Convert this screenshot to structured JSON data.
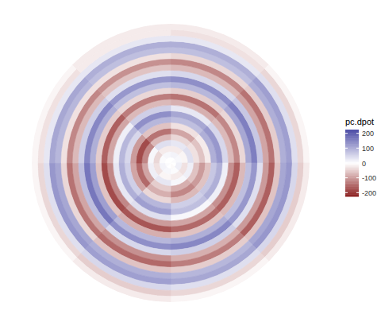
{
  "chart_data": {
    "type": "heatmap",
    "x": [
      22.5,
      67.5,
      112.5,
      157.5,
      202.5,
      247.5,
      292.5,
      337.5
    ],
    "xlim": [
      0,
      360
    ],
    "y": [
      0.5,
      1.5,
      2.5,
      3.5,
      4.5,
      5.5,
      6.5,
      7.5,
      8.5,
      9.5,
      10.5,
      11.5,
      12.5,
      13.5,
      14.5,
      15.5,
      16.5,
      17.5,
      18.5,
      19.5,
      20.5,
      21.5,
      22.5,
      23.5
    ],
    "ylim": [
      0,
      24
    ],
    "tick_labels": false,
    "cells": [
      [
        0,
        5,
        0,
        -5,
        0,
        5,
        0,
        0
      ],
      [
        15,
        10,
        20,
        5,
        10,
        15,
        5,
        10
      ],
      [
        -20,
        -10,
        -30,
        -20,
        -10,
        -30,
        -40,
        -20
      ],
      [
        30,
        40,
        20,
        10,
        30,
        20,
        10,
        40
      ],
      [
        -40,
        -30,
        -60,
        -80,
        -50,
        -90,
        -120,
        -70
      ],
      [
        -90,
        -60,
        -100,
        -120,
        -80,
        -150,
        -180,
        -140
      ],
      [
        -30,
        -20,
        -60,
        -70,
        -40,
        -90,
        -100,
        -60
      ],
      [
        80,
        100,
        70,
        60,
        90,
        60,
        50,
        90
      ],
      [
        110,
        130,
        100,
        80,
        120,
        100,
        90,
        140
      ],
      [
        30,
        50,
        20,
        10,
        40,
        30,
        20,
        60
      ],
      [
        -80,
        -70,
        -110,
        -90,
        -100,
        -120,
        -90,
        -70
      ],
      [
        -140,
        -120,
        -160,
        -150,
        -170,
        -180,
        -160,
        -130
      ],
      [
        -50,
        -40,
        -70,
        -60,
        -80,
        -60,
        -50,
        -40
      ],
      [
        90,
        110,
        80,
        100,
        90,
        120,
        100,
        80
      ],
      [
        140,
        160,
        130,
        150,
        140,
        170,
        150,
        130
      ],
      [
        50,
        70,
        40,
        60,
        50,
        80,
        60,
        40
      ],
      [
        -70,
        -90,
        -100,
        -80,
        -110,
        -90,
        -70,
        -60
      ],
      [
        -120,
        -140,
        -160,
        -130,
        -150,
        -140,
        -120,
        -110
      ],
      [
        -40,
        -50,
        -60,
        -50,
        -60,
        -40,
        -30,
        -30
      ],
      [
        80,
        100,
        110,
        90,
        100,
        110,
        90,
        80
      ],
      [
        100,
        120,
        130,
        110,
        120,
        130,
        110,
        100
      ],
      [
        30,
        40,
        50,
        40,
        50,
        40,
        30,
        30
      ],
      [
        -30,
        -40,
        -50,
        -40,
        -50,
        -40,
        -30,
        -20
      ],
      [
        -20,
        -10,
        -20,
        -10,
        -20,
        -10,
        -10,
        -20
      ]
    ],
    "colorbar": {
      "title": "pc.dpot",
      "range": [
        -225,
        225
      ],
      "ticks": [
        200,
        100,
        0,
        -100,
        -200
      ]
    }
  }
}
